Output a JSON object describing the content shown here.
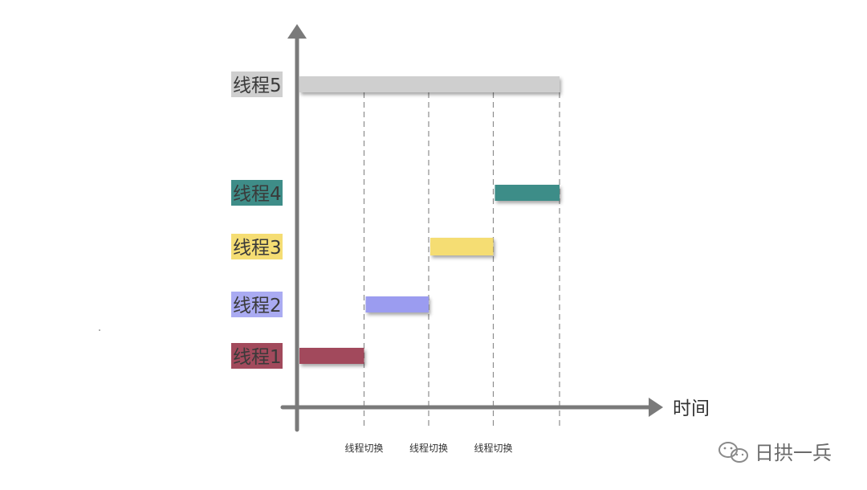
{
  "threads": [
    {
      "label": "线程1",
      "color": "#a24a5c",
      "start": 0,
      "end": 1
    },
    {
      "label": "线程2",
      "color": "#9b9cf0",
      "start": 1,
      "end": 2
    },
    {
      "label": "线程3",
      "color": "#f5dd73",
      "start": 2,
      "end": 3
    },
    {
      "label": "线程4",
      "color": "#3e8d88",
      "start": 3,
      "end": 4
    },
    {
      "label": "线程5",
      "color": "#cfcfcf",
      "start": 0,
      "end": 4
    }
  ],
  "x_axis": {
    "label": "时间"
  },
  "switches": [
    {
      "label": "线程切换",
      "at": 1
    },
    {
      "label": "线程切换",
      "at": 2
    },
    {
      "label": "线程切换",
      "at": 3
    }
  ],
  "watermark": {
    "text": "日拱一兵",
    "icon": "wechat-icon",
    "color": "#8a8a8a"
  }
}
